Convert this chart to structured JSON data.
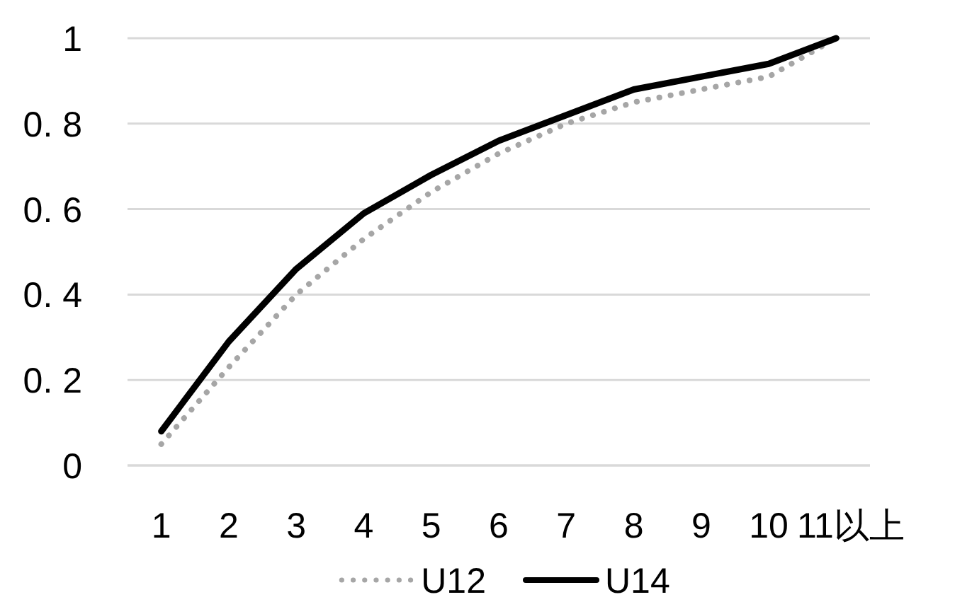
{
  "chart_data": {
    "type": "line",
    "categories": [
      "1",
      "2",
      "3",
      "4",
      "5",
      "6",
      "7",
      "8",
      "9",
      "10",
      "11以上"
    ],
    "series": [
      {
        "name": "U12",
        "color": "#a6a6a6",
        "line_style": "dotted",
        "values": [
          0.05,
          0.23,
          0.4,
          0.53,
          0.64,
          0.73,
          0.8,
          0.85,
          0.88,
          0.91,
          1.0
        ]
      },
      {
        "name": "U14",
        "color": "#000000",
        "line_style": "solid",
        "values": [
          0.08,
          0.29,
          0.46,
          0.59,
          0.68,
          0.76,
          0.82,
          0.88,
          0.91,
          0.94,
          1.0
        ]
      }
    ],
    "ylim": [
      0,
      1
    ],
    "yticks": [
      0,
      {
        "value": 0.2,
        "label": "0. 2"
      },
      {
        "value": 0.4,
        "label": "0. 4"
      },
      {
        "value": 0.6,
        "label": "0. 6"
      },
      {
        "value": 0.8,
        "label": "0. 8"
      },
      1
    ],
    "grid": "y",
    "legend": "bottom",
    "marker": "none"
  }
}
